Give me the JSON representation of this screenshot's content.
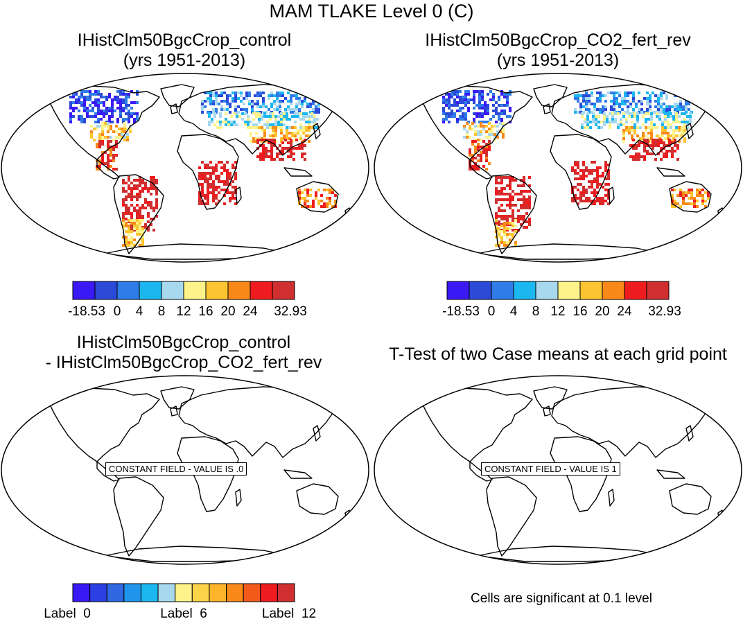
{
  "title": "MAM TLAKE Level 0 (C)",
  "panels": [
    {
      "title_line1": "IHistClm50BgcCrop_control",
      "title_line2": "(yrs 1951-2013)"
    },
    {
      "title_line1": "IHistClm50BgcCrop_CO2_fert_rev",
      "title_line2": "(yrs 1951-2013)"
    },
    {
      "title_line1": "IHistClm50BgcCrop_control",
      "title_line2": "- IHistClm50BgcCrop_CO2_fert_rev",
      "constant_label": "CONSTANT FIELD - VALUE IS .0"
    },
    {
      "title_line1": "T-Test of two Case means at each grid point",
      "constant_label": "CONSTANT FIELD - VALUE IS 1"
    }
  ],
  "footnote": "Cells are significant at 0.1 level",
  "chart_data": [
    {
      "type": "heatmap",
      "title": "IHistClm50BgcCrop_control (yrs 1951-2013)",
      "colorbar": {
        "colors": [
          "#3a19f5",
          "#2b4ad8",
          "#2f7ce9",
          "#1bb7f1",
          "#a8d8ee",
          "#fdf38a",
          "#fcc430",
          "#f98a1a",
          "#ef1c1f",
          "#cf2f2f"
        ],
        "tick_labels": [
          "-18.53",
          "0",
          "4",
          "8",
          "12",
          "16",
          "20",
          "24",
          "32.93"
        ]
      }
    },
    {
      "type": "heatmap",
      "title": "IHistClm50BgcCrop_CO2_fert_rev (yrs 1951-2013)",
      "colorbar": {
        "colors": [
          "#3a19f5",
          "#2b4ad8",
          "#2f7ce9",
          "#1bb7f1",
          "#a8d8ee",
          "#fdf38a",
          "#fcc430",
          "#f98a1a",
          "#ef1c1f",
          "#cf2f2f"
        ],
        "tick_labels": [
          "-18.53",
          "0",
          "4",
          "8",
          "12",
          "16",
          "20",
          "24",
          "32.93"
        ]
      }
    },
    {
      "type": "heatmap",
      "title": "IHistClm50BgcCrop_control - IHistClm50BgcCrop_CO2_fert_rev",
      "constant_value": 0,
      "colorbar": {
        "colors": [
          "#3a19f5",
          "#2b3fe3",
          "#2f68e0",
          "#1f94ea",
          "#1bb7f1",
          "#a8d8ee",
          "#fdf38a",
          "#fcd44a",
          "#fcb52a",
          "#f98a1a",
          "#f25a1c",
          "#ef1c1f",
          "#cf2f2f"
        ],
        "tick_labels": [
          "Label_0",
          "Label_6",
          "Label_12"
        ]
      }
    },
    {
      "type": "heatmap",
      "title": "T-Test of two Case means at each grid point",
      "constant_value": 1
    }
  ]
}
